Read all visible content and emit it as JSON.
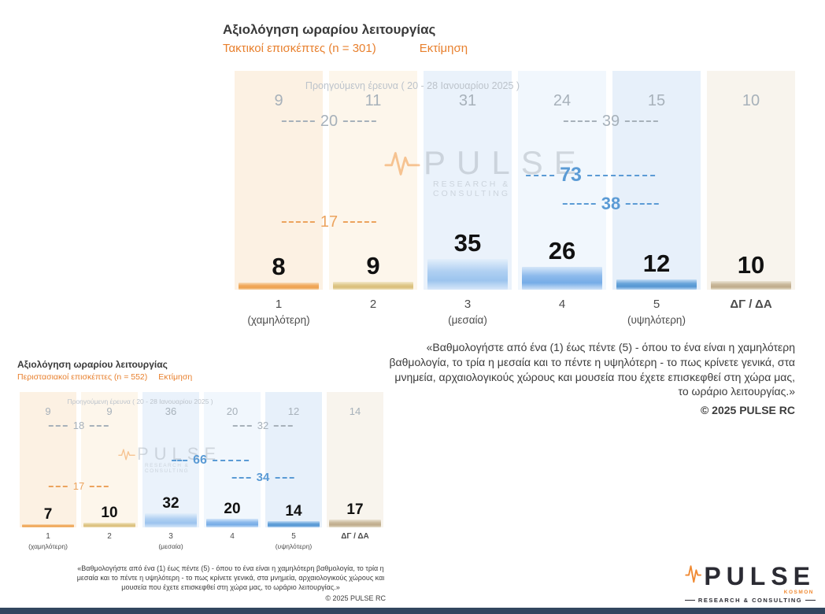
{
  "page": {
    "background": "#ffffff",
    "footer_bar_color": "#32465f"
  },
  "colors": {
    "accent_orange": "#E8802E",
    "aggregate_orange": "#ECA35D",
    "aggregate_blue": "#5B9BD5",
    "previous_gray": "#A7B1BA"
  },
  "watermark": {
    "brand": "PULSE",
    "sub": "RESEARCH & CONSULTING"
  },
  "logo": {
    "brand": "PULSE",
    "sub": "RESEARCH & CONSULTING",
    "tag": "KOSMON"
  },
  "chart_data": [
    {
      "type": "bar",
      "title": "Αξιολόγηση ωραρίου λειτουργίας",
      "subtitle": "Τακτικοί επισκέπτες  (n = 301)",
      "estimate_label": "Εκτίμηση",
      "previous_label": "Προηγούμενη έρευνα ( 20 - 28 Ιανουαρίου 2025 )",
      "categories": [
        "1 (χαμηλότερη)",
        "2",
        "3 (μεσαία)",
        "4",
        "5 (υψηλότερη)",
        "ΔΓ / ΔΑ"
      ],
      "axis": [
        {
          "num": "1",
          "sub": "(χαμηλότερη)"
        },
        {
          "num": "2",
          "sub": ""
        },
        {
          "num": "3",
          "sub": "(μεσαία)"
        },
        {
          "num": "4",
          "sub": ""
        },
        {
          "num": "5",
          "sub": "(υψηλότερη)"
        },
        {
          "num": "ΔΓ / ΔΑ",
          "sub": ""
        }
      ],
      "series": [
        {
          "name": "Εκτίμηση (τρέχουσα έρευνα)",
          "values": [
            8,
            9,
            35,
            26,
            12,
            10
          ]
        },
        {
          "name": "Προηγούμενη έρευνα (20 - 28 Ιανουαρίου 2025)",
          "values": [
            9,
            11,
            31,
            24,
            15,
            10
          ]
        }
      ],
      "aggregates": {
        "previous_1_2": 20,
        "previous_4_5": 39,
        "current_1_2": 17,
        "current_3_4_5": 73,
        "current_4_5": 38
      },
      "bar_scale": 1.1,
      "footnote": "«Βαθμολογήστε από ένα (1) έως πέντε (5) - όπου το ένα είναι η χαμηλότερη βαθμολογία, το τρία η μεσαία και το πέντε η υψηλότερη - το πως κρίνετε γενικά, στα μνημεία, αρχαιολογικούς χώρους και μουσεία που έχετε επισκεφθεί στη χώρα μας, το ωράριο λειτουργίας.»",
      "copyright": "©  2025  PULSE RC"
    },
    {
      "type": "bar",
      "title": "Αξιολόγηση ωραρίου λειτουργίας",
      "subtitle": "Περιστασιακοί επισκέπτες  (n = 552)",
      "estimate_label": "Εκτίμηση",
      "previous_label": "Προηγούμενη έρευνα ( 20 - 28 Ιανουαρίου 2025 )",
      "categories": [
        "1 (χαμηλότερη)",
        "2",
        "3 (μεσαία)",
        "4",
        "5 (υψηλότερη)",
        "ΔΓ / ΔΑ"
      ],
      "axis": [
        {
          "num": "1",
          "sub": "(χαμηλότερη)"
        },
        {
          "num": "2",
          "sub": ""
        },
        {
          "num": "3",
          "sub": "(μεσαία)"
        },
        {
          "num": "4",
          "sub": ""
        },
        {
          "num": "5",
          "sub": "(υψηλότερη)"
        },
        {
          "num": "ΔΓ / ΔΑ",
          "sub": ""
        }
      ],
      "series": [
        {
          "name": "Εκτίμηση (τρέχουσα έρευνα)",
          "values": [
            7,
            10,
            32,
            20,
            14,
            17
          ]
        },
        {
          "name": "Προηγούμενη έρευνα (20 - 28 Ιανουαρίου 2025)",
          "values": [
            9,
            9,
            36,
            20,
            12,
            14
          ]
        }
      ],
      "aggregates": {
        "previous_1_2": 18,
        "previous_4_5": 32,
        "current_1_2": 17,
        "current_3_4_5": 66,
        "current_4_5": 34
      },
      "bar_scale": 0.56,
      "footnote": "«Βαθμολογήστε από ένα (1) έως πέντε (5) - όπου το ένα είναι η χαμηλότερη βαθμολογία, το τρία η μεσαία και το πέντε η υψηλότερη - το πως κρίνετε γενικά, στα μνημεία, αρχαιολογικούς χώρους και μουσεία που έχετε επισκεφθεί στη χώρα μας, το ωράριο λειτουργίας.»",
      "copyright": "©  2025  PULSE RC"
    }
  ]
}
